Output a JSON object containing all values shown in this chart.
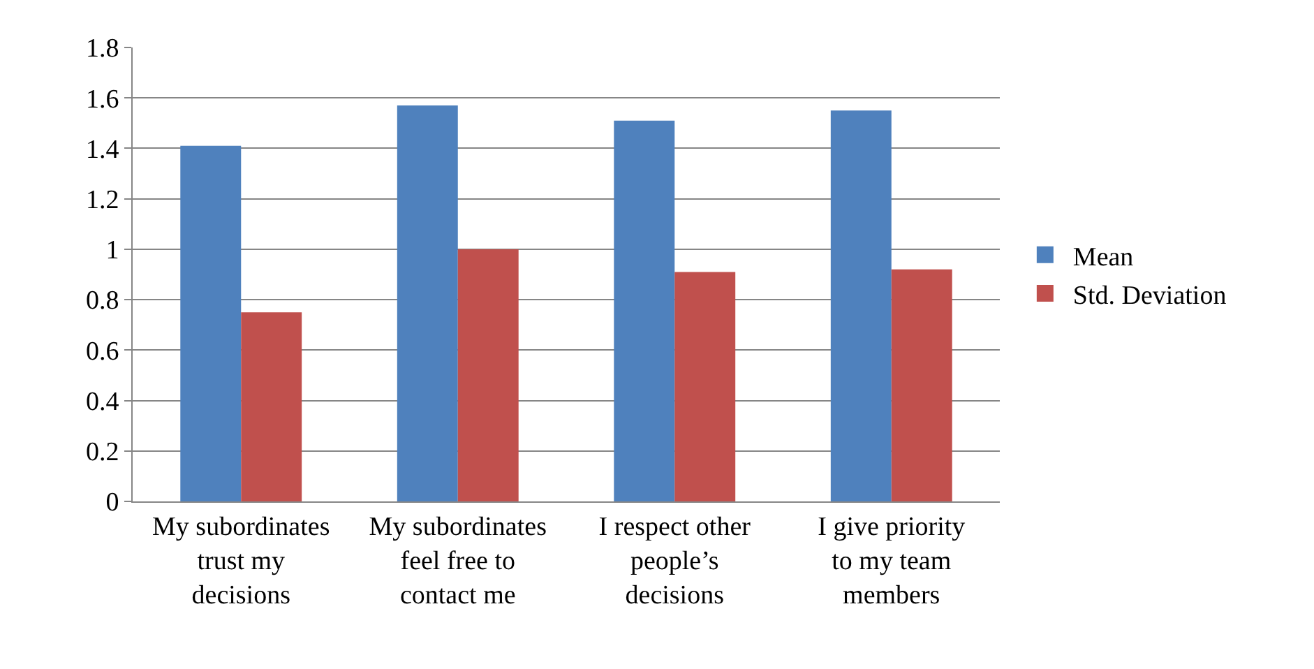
{
  "chart_data": {
    "type": "bar",
    "categories": [
      "My subordinates trust my decisions",
      "My subordinates feel free to contact me",
      "I respect other people’s decisions",
      "I give priority to my team members"
    ],
    "series": [
      {
        "name": "Mean",
        "color": "#4f81bd",
        "values": [
          1.41,
          1.57,
          1.51,
          1.55
        ]
      },
      {
        "name": "Std. Deviation",
        "color": "#c0504d",
        "values": [
          0.75,
          1.0,
          0.91,
          0.92
        ]
      }
    ],
    "ylim": [
      0,
      1.8
    ],
    "yticks": [
      0,
      0.2,
      0.4,
      0.6,
      0.8,
      1,
      1.2,
      1.4,
      1.6,
      1.8
    ],
    "grid": "y",
    "legend": "right"
  }
}
